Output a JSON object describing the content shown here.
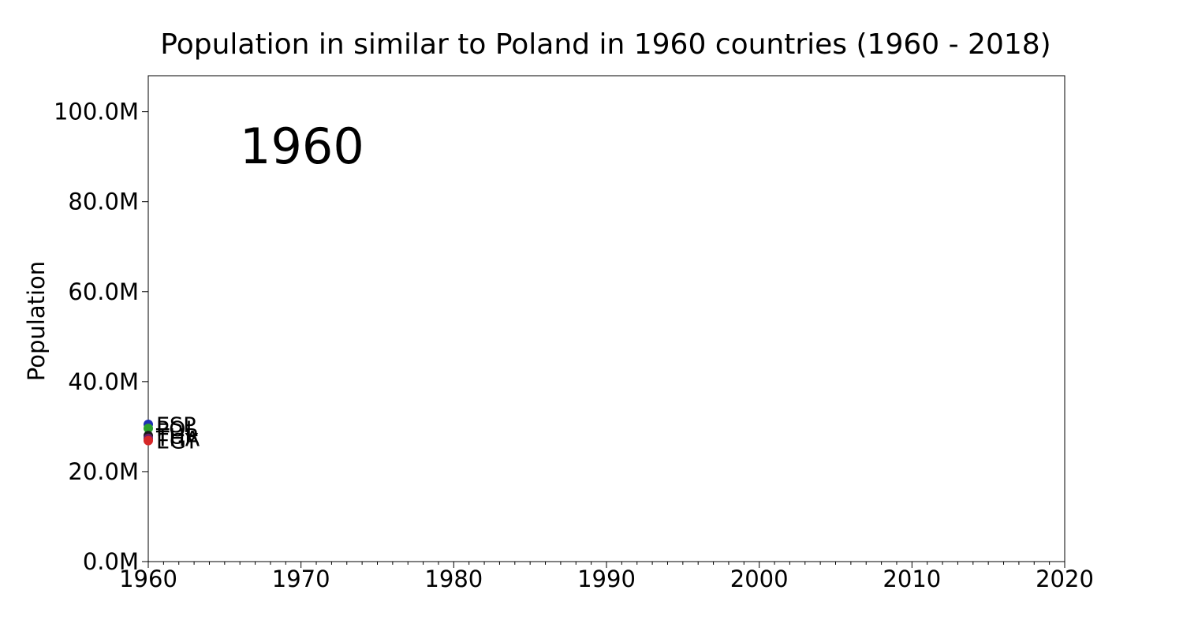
{
  "chart_data": {
    "type": "scatter",
    "title": "Population in similar to Poland in 1960 countries (1960 - 2018)",
    "xlabel": "",
    "ylabel": "Population",
    "year_label": "1960",
    "xlim": [
      1960,
      2020
    ],
    "ylim": [
      0,
      108000000
    ],
    "x_ticks": [
      {
        "value": 1960,
        "label": "1960"
      },
      {
        "value": 1970,
        "label": "1970"
      },
      {
        "value": 1980,
        "label": "1980"
      },
      {
        "value": 1990,
        "label": "1990"
      },
      {
        "value": 2000,
        "label": "2000"
      },
      {
        "value": 2010,
        "label": "2010"
      },
      {
        "value": 2020,
        "label": "2020"
      }
    ],
    "x_minor_step": 1,
    "y_ticks": [
      {
        "value": 0,
        "label": "0.0M"
      },
      {
        "value": 20000000,
        "label": "20.0M"
      },
      {
        "value": 40000000,
        "label": "40.0M"
      },
      {
        "value": 60000000,
        "label": "60.0M"
      },
      {
        "value": 80000000,
        "label": "80.0M"
      },
      {
        "value": 100000000,
        "label": "100.0M"
      }
    ],
    "grid": false,
    "legend": "none",
    "series": [
      {
        "name": "ESP",
        "color": "#1f2fb4",
        "points": [
          {
            "x": 1960,
            "y": 30500000
          }
        ]
      },
      {
        "name": "POL",
        "color": "#2ca02c",
        "points": [
          {
            "x": 1960,
            "y": 29600000
          }
        ]
      },
      {
        "name": "TUR",
        "color": "#1a1a1a",
        "points": [
          {
            "x": 1960,
            "y": 28000000
          }
        ]
      },
      {
        "name": "THA",
        "color": "#6a1b6a",
        "points": [
          {
            "x": 1960,
            "y": 27400000
          }
        ]
      },
      {
        "name": "EGY",
        "color": "#d62728",
        "points": [
          {
            "x": 1960,
            "y": 26900000
          }
        ]
      }
    ]
  }
}
